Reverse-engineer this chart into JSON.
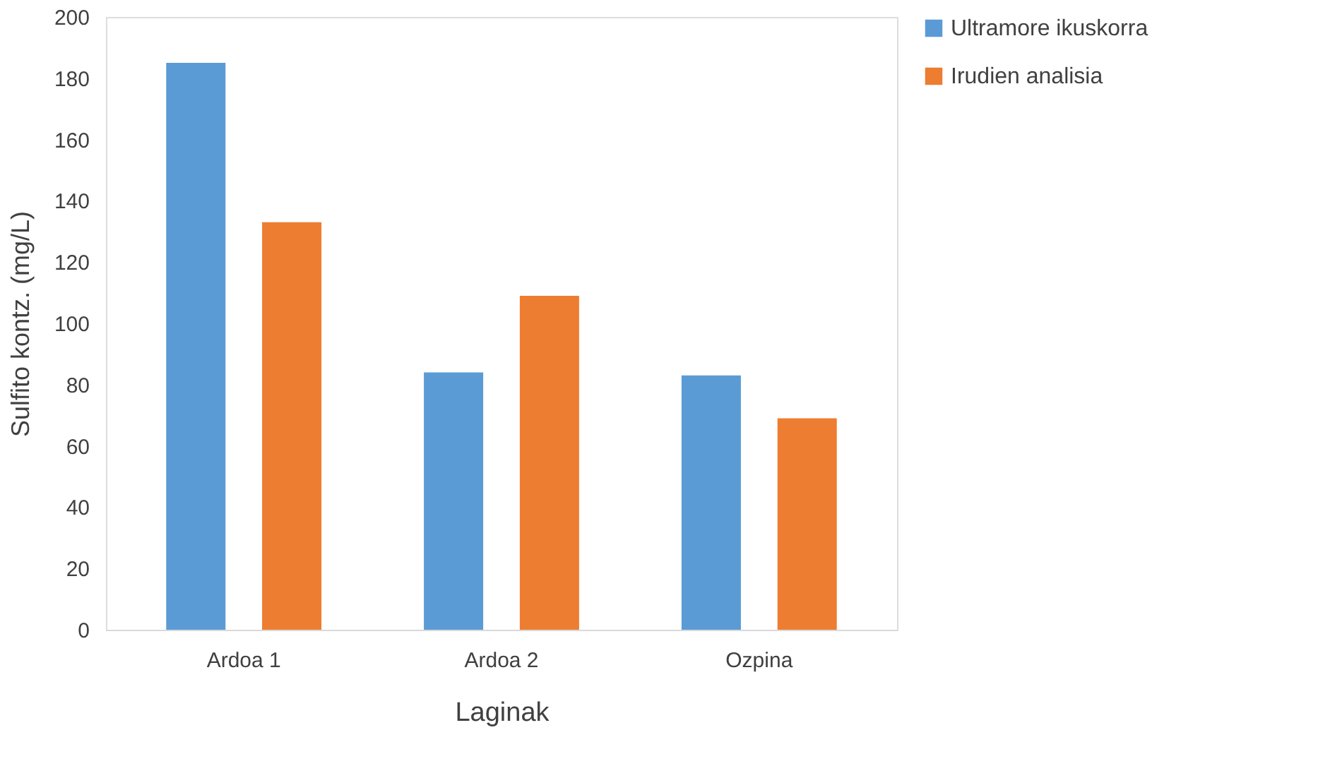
{
  "chart_data": {
    "type": "bar",
    "xlabel": "Laginak",
    "ylabel": "Sulfito kontz. (mg/L)",
    "categories": [
      "Ardoa 1",
      "Ardoa 2",
      "Ozpina"
    ],
    "series": [
      {
        "name": "Ultramore ikuskorra",
        "color": "#5b9bd5",
        "values": [
          185,
          84,
          83
        ]
      },
      {
        "name": "Irudien analisia",
        "color": "#ed7d31",
        "values": [
          133,
          109,
          69
        ]
      }
    ],
    "ylim": [
      0,
      200
    ],
    "yticks": [
      0,
      20,
      40,
      60,
      80,
      100,
      120,
      140,
      160,
      180,
      200
    ],
    "grid": false,
    "legend": "right"
  }
}
